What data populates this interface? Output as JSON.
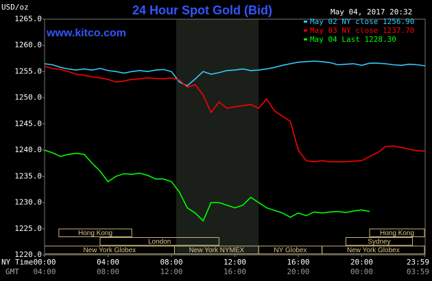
{
  "chart_data": {
    "type": "line",
    "title": "24 Hour Spot Gold (Bid)",
    "y_unit": "USD/oz",
    "timestamp": "May 04, 2017 20:32",
    "watermark": "www.kitco.com",
    "x_label": "NY Time",
    "x2_label": "GMT",
    "xlim": [
      0,
      24
    ],
    "xticks": [
      {
        "value": 0,
        "label": "00:00"
      },
      {
        "value": 4,
        "label": "04:00"
      },
      {
        "value": 8,
        "label": "08:00"
      },
      {
        "value": 12,
        "label": "12:00"
      },
      {
        "value": 16,
        "label": "16:00"
      },
      {
        "value": 20,
        "label": "20:00"
      },
      {
        "value": 23.983,
        "label": "23:59"
      }
    ],
    "x2tick_labels": [
      "04:00",
      "08:00",
      "12:00",
      "16:00",
      "20:00",
      "00:00",
      "03:59"
    ],
    "ylim": [
      1220,
      1265
    ],
    "yticks": [
      {
        "value": 1220,
        "label": "1220.0"
      },
      {
        "value": 1225,
        "label": "1225.0"
      },
      {
        "value": 1230,
        "label": "1230.0"
      },
      {
        "value": 1235,
        "label": "1235.0"
      },
      {
        "value": 1240,
        "label": "1240.0"
      },
      {
        "value": 1245,
        "label": "1245.0"
      },
      {
        "value": 1250,
        "label": "1250.0"
      },
      {
        "value": 1255,
        "label": "1255.0"
      },
      {
        "value": 1260,
        "label": "1260.0"
      },
      {
        "value": 1265,
        "label": "1265.0"
      }
    ],
    "highlight": [
      8.3,
      13.5
    ],
    "sessions": [
      [
        {
          "label": "Hong Kong",
          "start": 0.9,
          "end": 5.5
        },
        {
          "label": "Hong Kong",
          "start": 20.5,
          "end": 24
        }
      ],
      [
        {
          "label": "London",
          "start": 3.5,
          "end": 11
        },
        {
          "label": "Sydney",
          "start": 19,
          "end": 23.2
        }
      ],
      [
        {
          "label": "New York Globex",
          "start": 0,
          "end": 8.2
        },
        {
          "label": "New York NYMEX",
          "start": 8.2,
          "end": 13.5
        },
        {
          "label": "NY Globex",
          "start": 13.5,
          "end": 17.5
        },
        {
          "label": "New York Globex",
          "start": 17.5,
          "end": 24
        }
      ]
    ],
    "x": [
      0,
      0.5,
      1,
      1.5,
      2,
      2.5,
      3,
      3.5,
      4,
      4.5,
      5,
      5.5,
      6,
      6.5,
      7,
      7.5,
      8,
      8.5,
      9,
      9.5,
      10,
      10.5,
      11,
      11.5,
      12,
      12.5,
      13,
      13.5,
      14,
      14.5,
      15,
      15.5,
      16,
      16.5,
      17,
      17.5,
      18,
      18.5,
      19,
      19.5,
      20,
      20.5,
      21,
      21.5,
      22,
      22.5,
      23,
      23.5,
      24
    ],
    "series": [
      {
        "name": "May 02 NY close 1256.90",
        "color": "#33ccff",
        "values": [
          1256.5,
          1256.3,
          1255.8,
          1255.5,
          1255.3,
          1255.5,
          1255.3,
          1255.6,
          1255.2,
          1255.0,
          1254.7,
          1255.0,
          1255.2,
          1255.0,
          1255.3,
          1255.4,
          1255.0,
          1253.0,
          1252.3,
          1253.6,
          1255.0,
          1254.5,
          1254.8,
          1255.2,
          1255.3,
          1255.5,
          1255.2,
          1255.3,
          1255.5,
          1255.8,
          1256.2,
          1256.5,
          1256.8,
          1256.9,
          1257.0,
          1256.9,
          1256.7,
          1256.3,
          1256.4,
          1256.5,
          1256.2,
          1256.6,
          1256.6,
          1256.5,
          1256.3,
          1256.2,
          1256.4,
          1256.3,
          1256.1
        ]
      },
      {
        "name": "May 03 NY close 1237.70",
        "color": "#ff0000",
        "values": [
          1256.0,
          1255.6,
          1255.4,
          1255.0,
          1254.5,
          1254.3,
          1254.0,
          1253.8,
          1253.5,
          1253.0,
          1253.2,
          1253.5,
          1253.6,
          1253.8,
          1253.7,
          1253.6,
          1253.8,
          1253.4,
          1252.0,
          1252.5,
          1250.5,
          1247.2,
          1249.2,
          1248.0,
          1248.3,
          1248.5,
          1248.7,
          1248.0,
          1249.8,
          1247.5,
          1246.5,
          1245.5,
          1240.0,
          1238.0,
          1237.8,
          1238.0,
          1237.8,
          1237.8,
          1237.8,
          1237.9,
          1238.0,
          1238.8,
          1239.5,
          1240.7,
          1240.8,
          1240.5,
          1240.2,
          1239.9,
          1239.8
        ]
      },
      {
        "name": "May 04 Last 1228.30",
        "color": "#00ff00",
        "values": [
          1240.0,
          1239.5,
          1238.8,
          1239.2,
          1239.4,
          1239.2,
          1237.5,
          1236.0,
          1234.0,
          1235.0,
          1235.5,
          1235.4,
          1235.6,
          1235.2,
          1234.5,
          1234.5,
          1234.0,
          1232.0,
          1229.0,
          1228.0,
          1226.5,
          1230.0,
          1230.0,
          1229.5,
          1229.0,
          1229.5,
          1231.0,
          1230.0,
          1229.0,
          1228.5,
          1228.0,
          1227.2,
          1228.0,
          1227.5,
          1228.2,
          1228.0,
          1228.2,
          1228.3,
          1228.1,
          1228.4,
          1228.6,
          1228.3,
          null,
          null,
          null,
          null,
          null,
          null,
          null
        ]
      }
    ]
  }
}
